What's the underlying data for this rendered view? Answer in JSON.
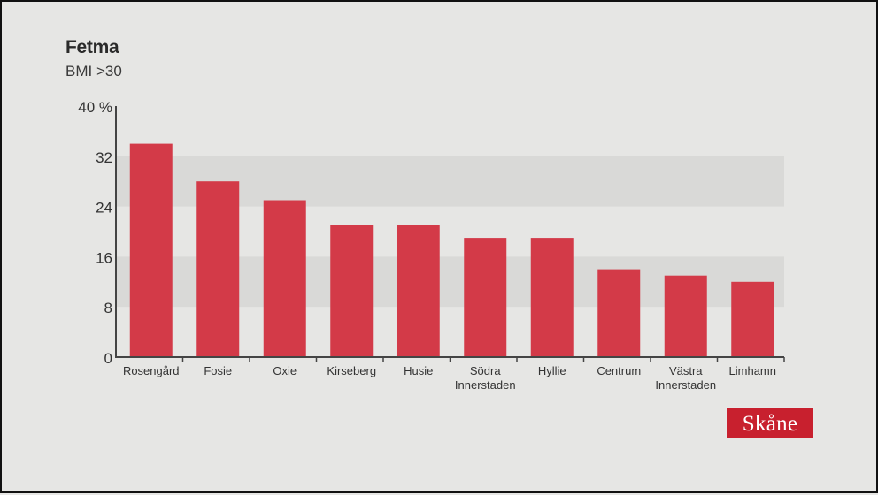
{
  "badge": "Skåne",
  "chart_data": {
    "type": "bar",
    "title": "Fetma",
    "subtitle": "BMI >30",
    "xlabel": "",
    "ylabel": "",
    "ylim": [
      0,
      40
    ],
    "yticks": [
      "0",
      "8",
      "16",
      "24",
      "32",
      "40 %"
    ],
    "ytick_values": [
      0,
      8,
      16,
      24,
      32,
      40
    ],
    "grid": "alternating bands",
    "categories": [
      [
        "Rosengård"
      ],
      [
        "Fosie"
      ],
      [
        "Oxie"
      ],
      [
        "Kirseberg"
      ],
      [
        "Husie"
      ],
      [
        "Södra",
        "Innerstaden"
      ],
      [
        "Hyllie"
      ],
      [
        "Centrum"
      ],
      [
        "Västra",
        "Innerstaden"
      ],
      [
        "Limhamn"
      ]
    ],
    "values": [
      34,
      28,
      25,
      21,
      21,
      19,
      19,
      14,
      13,
      12
    ],
    "bar_color": "#d33a48",
    "band_color": "#d9d9d7",
    "background_color": "#e6e6e4",
    "badge_color": "#c8202e"
  }
}
